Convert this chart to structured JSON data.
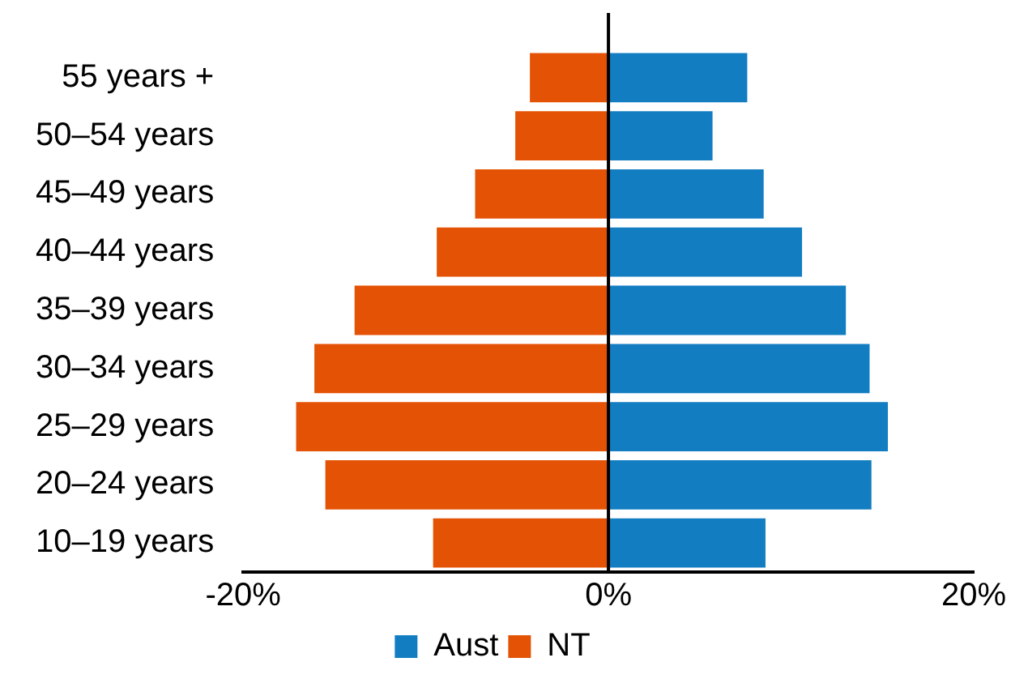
{
  "chart_data": {
    "type": "bar",
    "orientation": "horizontal",
    "stacked": true,
    "categories": [
      "55 years +",
      "50–54 years",
      "45–49 years",
      "40–44 years",
      "35–39 years",
      "30–34 years",
      "25–29 years",
      "20–24 years",
      "10–19 years"
    ],
    "series": [
      {
        "name": "Aust",
        "color": "#137dc1",
        "values": [
          7.6,
          5.7,
          8.5,
          10.6,
          13.0,
          14.3,
          15.3,
          14.4,
          8.6
        ]
      },
      {
        "name": "NT",
        "color": "#e35205",
        "values": [
          -4.3,
          -5.1,
          -7.3,
          -9.4,
          -13.9,
          -16.1,
          -17.1,
          -15.5,
          -9.6
        ]
      }
    ],
    "xlim": [
      -20,
      20
    ],
    "xticks": [
      {
        "value": -20,
        "label": "-20%"
      },
      {
        "value": 0,
        "label": "0%"
      },
      {
        "value": 20,
        "label": "20%"
      }
    ],
    "ref_lines": [
      {
        "axis": "x",
        "value": 0,
        "color": "#000000"
      }
    ],
    "grid": false,
    "legend": "bottom"
  }
}
